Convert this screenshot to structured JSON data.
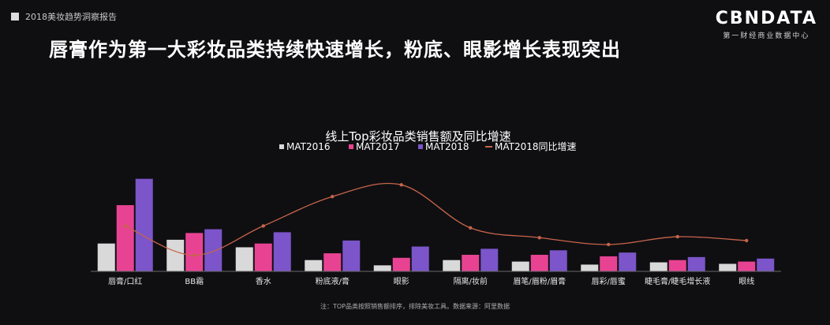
{
  "header": {
    "report_tag": "2018美妆趋势洞察报告",
    "logo_text": "CBNDATA",
    "logo_tagline": "第一财经商业数据中心",
    "headline": "唇膏作为第一大彩妆品类持续快速增长，粉底、眼影增长表现突出"
  },
  "footer": {
    "note": "注：TOP品类按照销售额排序，排除美妆工具。数据来源：阿里数据"
  },
  "colors": {
    "MAT2016": "#d9d9d9",
    "MAT2017": "#e84393",
    "MAT2018": "#7b55c9",
    "growth": "#c8644a",
    "background": "#0f0f12"
  },
  "chart_data": {
    "type": "bar",
    "title": "线上Top彩妆品类销售额及同比增速",
    "legend_position": "top",
    "grid": false,
    "categories": [
      "唇膏/口红",
      "BB霜",
      "香水",
      "粉底液/膏",
      "眼影",
      "隔离/妆前",
      "眉笔/眉粉/眉膏",
      "唇彩/唇蜜",
      "睫毛膏/睫毛增长液",
      "眼线"
    ],
    "series": [
      {
        "name": "MAT2016",
        "values": [
          37,
          42,
          32,
          15,
          8,
          15,
          13,
          9,
          12,
          10
        ]
      },
      {
        "name": "MAT2017",
        "values": [
          88,
          51,
          37,
          24,
          18,
          22,
          22,
          20,
          15,
          13
        ]
      },
      {
        "name": "MAT2018",
        "values": [
          123,
          56,
          52,
          41,
          33,
          30,
          28,
          25,
          19,
          17
        ]
      }
    ],
    "ylim": [
      0,
      130
    ],
    "growth_series": {
      "name": "MAT2018同比增速",
      "values": [
        0.4,
        0.1,
        0.4,
        0.7,
        0.82,
        0.38,
        0.28,
        0.21,
        0.29,
        0.25
      ],
      "ylim": [
        0,
        1
      ]
    }
  }
}
